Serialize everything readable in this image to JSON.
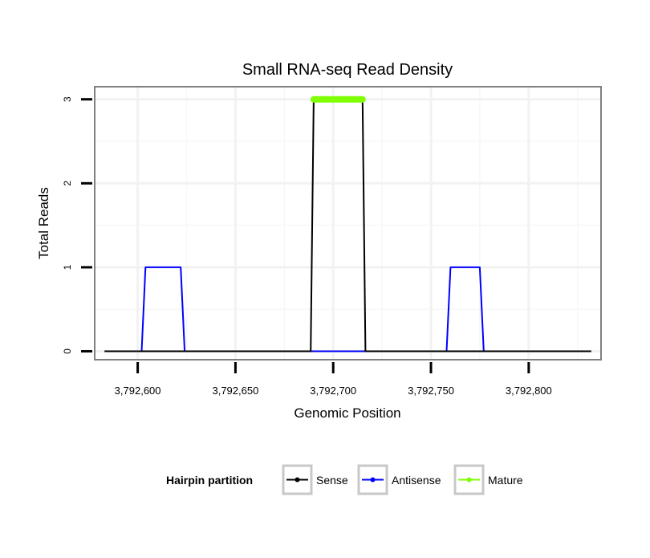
{
  "chart_data": {
    "type": "line",
    "title": "Small RNA-seq Read Density",
    "xlabel": "Genomic Position",
    "ylabel": "Total Reads",
    "xlim": [
      3792578,
      3792837
    ],
    "ylim": [
      -0.1,
      3.15
    ],
    "x_ticks": [
      3792600,
      3792650,
      3792700,
      3792750,
      3792800
    ],
    "x_tick_labels": [
      "3,792,600",
      "3,792,650",
      "3,792,700",
      "3,792,750",
      "3,792,800"
    ],
    "y_ticks": [
      0,
      1,
      2,
      3
    ],
    "y_tick_labels": [
      "0",
      "1",
      "2",
      "3"
    ],
    "grid": true,
    "legend": {
      "title": "Hairpin partition",
      "placement": "bottom"
    },
    "series": [
      {
        "name": "Sense",
        "color": "#000000",
        "x": [
          3792583,
          3792688.5,
          3792690,
          3792715,
          3792716.5,
          3792832
        ],
        "y": [
          0,
          0,
          3,
          3,
          0,
          0
        ]
      },
      {
        "name": "Antisense",
        "color": "#0000ff",
        "x": [
          3792602,
          3792604,
          3792622,
          3792624,
          3792689,
          3792716,
          3792758,
          3792760,
          3792775,
          3792777
        ],
        "y": [
          0,
          1,
          1,
          0,
          0,
          0,
          0,
          1,
          1,
          0
        ]
      },
      {
        "name": "Mature",
        "color": "#7fff00",
        "x": [
          3792690,
          3792715
        ],
        "y": [
          3,
          3
        ]
      }
    ]
  }
}
